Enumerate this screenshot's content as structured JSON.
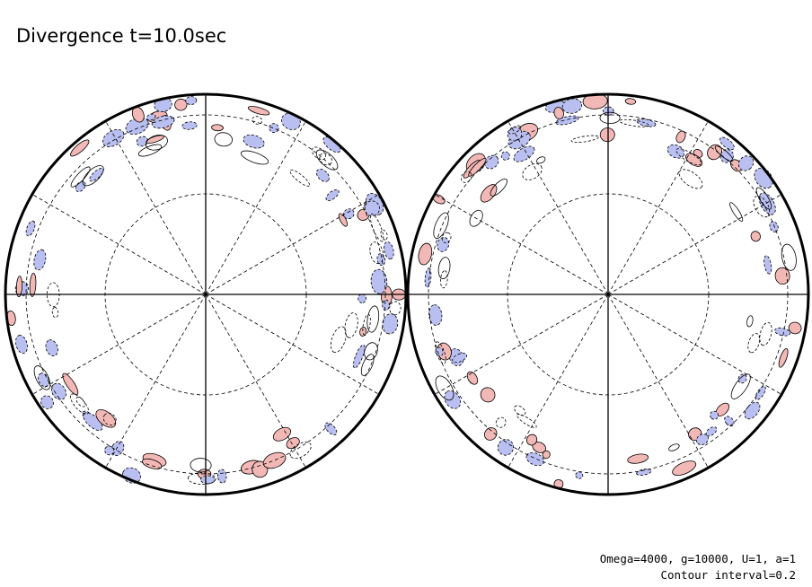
{
  "title": "Divergence t=10.0sec",
  "annotations": [
    "Omega=4000, g=10000, U=1, a=1",
    "Contour interval=0.2"
  ]
}
